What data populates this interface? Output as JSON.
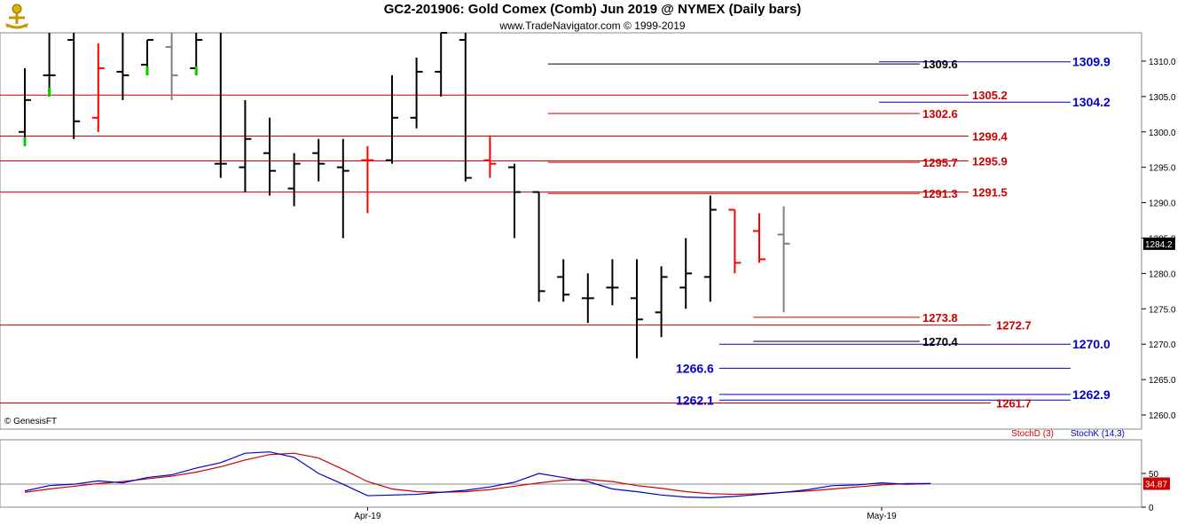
{
  "header": {
    "title": "GC2-201906:  Gold Comex (Comb) Jun 2019 @ NYMEX  (Daily bars)",
    "subtitle": "www.TradeNavigator.com © 1999-2019",
    "copyright": "© GenesisFT"
  },
  "colors": {
    "up": "#000000",
    "down": "#ff0000",
    "current": "#808080",
    "green": "#00cc00",
    "red_level": "#cc0000",
    "blue_level": "#0000cc",
    "stoch_d": "#cc0000",
    "stoch_k": "#0000cc"
  },
  "chart_data": [
    {
      "type": "ohlc",
      "title": "GC2-201906:  Gold Comex (Comb) Jun 2019 @ NYMEX  (Daily bars)",
      "ylim": [
        1258,
        1314
      ],
      "y_ticks": [
        "1310.0",
        "1305.0",
        "1300.0",
        "1295.0",
        "1290.0",
        "1285.0",
        "1280.0",
        "1275.0",
        "1270.0",
        "1265.0",
        "1260.0"
      ],
      "last_price": "1284.2",
      "bars": [
        {
          "o": 1300.0,
          "h": 1309.0,
          "l": 1298.0,
          "c": 1304.5,
          "color": "black",
          "low_tick": "green"
        },
        {
          "o": 1308.0,
          "h": 1314.0,
          "l": 1305.0,
          "c": 1308.0,
          "color": "black",
          "low_tick": "green"
        },
        {
          "o": 1313.0,
          "h": 1314.0,
          "l": 1299.0,
          "c": 1301.5,
          "color": "black"
        },
        {
          "o": 1302.0,
          "h": 1312.5,
          "l": 1300.0,
          "c": 1309.0,
          "color": "red"
        },
        {
          "o": 1308.5,
          "h": 1314.0,
          "l": 1304.5,
          "c": 1308.0,
          "color": "black"
        },
        {
          "o": 1309.5,
          "h": 1313.0,
          "l": 1308.0,
          "c": 1313.0,
          "color": "black",
          "low_tick": "green"
        },
        {
          "o": 1312.0,
          "h": 1314.0,
          "l": 1304.5,
          "c": 1308.0,
          "color": "gray"
        },
        {
          "o": 1309.0,
          "h": 1314.0,
          "l": 1308.0,
          "c": 1313.0,
          "color": "black",
          "low_tick": "green"
        },
        {
          "o": 1295.5,
          "h": 1314.0,
          "l": 1293.5,
          "c": 1295.5,
          "color": "black"
        },
        {
          "o": 1295.0,
          "h": 1304.5,
          "l": 1291.5,
          "c": 1299.0,
          "color": "black"
        },
        {
          "o": 1297.0,
          "h": 1302.0,
          "l": 1291.0,
          "c": 1294.5,
          "color": "black"
        },
        {
          "o": 1292.0,
          "h": 1297.0,
          "l": 1289.5,
          "c": 1295.5,
          "color": "black"
        },
        {
          "o": 1297.0,
          "h": 1299.0,
          "l": 1293.0,
          "c": 1295.5,
          "color": "black"
        },
        {
          "o": 1295.0,
          "h": 1299.0,
          "l": 1285.0,
          "c": 1294.5,
          "color": "black"
        },
        {
          "o": 1296.0,
          "h": 1298.0,
          "l": 1288.5,
          "c": 1296.0,
          "color": "red"
        },
        {
          "o": 1296.0,
          "h": 1308.0,
          "l": 1295.5,
          "c": 1302.0,
          "color": "black"
        },
        {
          "o": 1302.0,
          "h": 1310.5,
          "l": 1300.5,
          "c": 1308.5,
          "color": "black"
        },
        {
          "o": 1308.5,
          "h": 1314.0,
          "l": 1305.0,
          "c": 1314.0,
          "color": "black"
        },
        {
          "o": 1313.0,
          "h": 1314.0,
          "l": 1293.0,
          "c": 1293.5,
          "color": "black"
        },
        {
          "o": 1296.0,
          "h": 1299.5,
          "l": 1293.5,
          "c": 1295.5,
          "color": "red"
        },
        {
          "o": 1295.0,
          "h": 1295.5,
          "l": 1285.0,
          "c": 1291.5,
          "color": "black"
        },
        {
          "o": 1291.5,
          "h": 1291.5,
          "l": 1276.0,
          "c": 1277.5,
          "color": "black"
        },
        {
          "o": 1279.5,
          "h": 1282.0,
          "l": 1276.0,
          "c": 1277.0,
          "color": "black"
        },
        {
          "o": 1276.5,
          "h": 1280.0,
          "l": 1273.0,
          "c": 1276.5,
          "color": "black"
        },
        {
          "o": 1278.0,
          "h": 1282.0,
          "l": 1275.5,
          "c": 1278.0,
          "color": "black"
        },
        {
          "o": 1276.5,
          "h": 1282.0,
          "l": 1268.0,
          "c": 1273.5,
          "color": "black"
        },
        {
          "o": 1274.5,
          "h": 1281.0,
          "l": 1271.0,
          "c": 1279.5,
          "color": "black"
        },
        {
          "o": 1278.0,
          "h": 1285.0,
          "l": 1275.0,
          "c": 1280.0,
          "color": "black"
        },
        {
          "o": 1279.5,
          "h": 1291.0,
          "l": 1276.0,
          "c": 1289.0,
          "color": "black"
        },
        {
          "o": 1289.0,
          "h": 1289.0,
          "l": 1280.0,
          "c": 1281.5,
          "color": "red"
        },
        {
          "o": 1286.0,
          "h": 1288.5,
          "l": 1281.5,
          "c": 1282.0,
          "color": "red"
        },
        {
          "o": 1285.5,
          "h": 1289.5,
          "l": 1274.5,
          "c": 1284.2,
          "color": "gray"
        }
      ],
      "levels": [
        {
          "value": 1309.9,
          "label": "1309.9",
          "color": "blue",
          "x_from": 0.77,
          "label_align": "right"
        },
        {
          "value": 1309.6,
          "label": "1309.6",
          "color": "black",
          "x_from": 0.48,
          "label_align": "mid"
        },
        {
          "value": 1305.2,
          "label": "1305.2",
          "color": "red",
          "x_from": 0.0,
          "label_align": "mid2"
        },
        {
          "value": 1304.2,
          "label": "1304.2",
          "color": "blue",
          "x_from": 0.77,
          "label_align": "right"
        },
        {
          "value": 1302.6,
          "label": "1302.6",
          "color": "red",
          "x_from": 0.48,
          "label_align": "mid"
        },
        {
          "value": 1299.4,
          "label": "1299.4",
          "color": "red",
          "x_from": 0.0,
          "label_align": "mid2"
        },
        {
          "value": 1295.9,
          "label": "1295.9",
          "color": "red",
          "x_from": 0.0,
          "label_align": "mid2"
        },
        {
          "value": 1295.7,
          "label": "1295.7",
          "color": "red",
          "x_from": 0.48,
          "label_align": "mid"
        },
        {
          "value": 1291.5,
          "label": "1291.5",
          "color": "red",
          "x_from": 0.0,
          "label_align": "mid2"
        },
        {
          "value": 1291.3,
          "label": "1291.3",
          "color": "red",
          "x_from": 0.48,
          "label_align": "mid"
        },
        {
          "value": 1273.8,
          "label": "1273.8",
          "color": "red",
          "x_from": 0.66,
          "label_align": "mid"
        },
        {
          "value": 1272.7,
          "label": "1272.7",
          "color": "red",
          "x_from": 0.0,
          "label_align": "mid3"
        },
        {
          "value": 1270.4,
          "label": "1270.4",
          "color": "black",
          "x_from": 0.66,
          "label_align": "mid"
        },
        {
          "value": 1270.0,
          "label": "1270.0",
          "color": "blue",
          "x_from": 0.63,
          "label_align": "right"
        },
        {
          "value": 1266.6,
          "label": "1266.6",
          "color": "blue",
          "x_from": 0.63,
          "label_align": "left"
        },
        {
          "value": 1262.9,
          "label": "1262.9",
          "color": "blue",
          "x_from": 0.63,
          "label_align": "right"
        },
        {
          "value": 1262.1,
          "label": "1262.1",
          "color": "blue",
          "x_from": 0.63,
          "label_align": "left"
        },
        {
          "value": 1261.7,
          "label": "1261.7",
          "color": "red",
          "x_from": 0.0,
          "label_align": "mid3"
        }
      ]
    },
    {
      "type": "line",
      "series": [
        {
          "name": "StochD (3)",
          "color": "red",
          "values": [
            22,
            27,
            31,
            35,
            38,
            42,
            46,
            52,
            60,
            70,
            78,
            80,
            73,
            56,
            38,
            27,
            23,
            22,
            23,
            26,
            31,
            36,
            40,
            41,
            38,
            32,
            28,
            23,
            20,
            19,
            20,
            22,
            24,
            27,
            30,
            33,
            35,
            35
          ]
        },
        {
          "name": "StochK (14,3)",
          "color": "blue",
          "values": [
            24,
            32,
            34,
            39,
            36,
            44,
            48,
            58,
            66,
            80,
            82,
            74,
            50,
            34,
            17,
            18,
            19,
            22,
            25,
            30,
            37,
            50,
            44,
            38,
            27,
            23,
            18,
            15,
            14,
            16,
            19,
            22,
            26,
            32,
            33,
            36,
            34,
            35
          ]
        }
      ],
      "ylim": [
        0,
        100
      ],
      "y_ticks": [
        "50",
        "0"
      ],
      "last_value": "34.87",
      "x_labels": [
        {
          "label": "Apr-19",
          "index": 14
        },
        {
          "label": "May-19",
          "index": 35
        }
      ]
    }
  ]
}
